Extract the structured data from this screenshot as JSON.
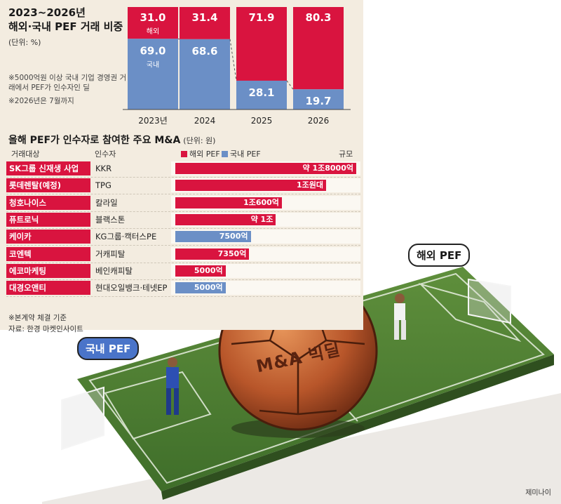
{
  "chart_data": [
    {
      "type": "bar",
      "stacked": true,
      "title": "2023~2026년\n해외·국내 PEF 거래 비중",
      "unit": "(단위: %)",
      "categories": [
        "2023년",
        "2024",
        "2025",
        "2026"
      ],
      "series": [
        {
          "name": "해외",
          "values": [
            31.0,
            31.4,
            71.9,
            80.3
          ],
          "color": "#d9143f"
        },
        {
          "name": "국내",
          "values": [
            69.0,
            68.6,
            28.1,
            19.7
          ],
          "color": "#6b8fc6"
        }
      ],
      "value_labels": {
        "해외": [
          "31.0",
          "31.4",
          "71.9",
          "80.3"
        ],
        "국내": [
          "69.0",
          "68.6",
          "28.1",
          "19.7"
        ]
      },
      "inline_labels": {
        "해외": "해외",
        "국내": "국내"
      },
      "ylim": [
        0,
        100
      ],
      "notes": [
        "※5000억원 이상 국내 기업 경영권 거래에서 PEF가 인수자인 딜",
        "※2026년은 7월까지"
      ]
    },
    {
      "type": "bar",
      "orientation": "horizontal",
      "title": "올해 PEF가 인수자로 참여한 주요 M&A",
      "unit": "(단위: 원)",
      "columns": [
        "거래대상",
        "인수자",
        "규모"
      ],
      "legend": [
        {
          "name": "해외 PEF",
          "color": "#d9143f"
        },
        {
          "name": "국내 PEF",
          "color": "#6b8fc6"
        }
      ],
      "rows": [
        {
          "target": "SK그룹 신재생 사업",
          "buyer": "KKR",
          "label": "약 1조8000억",
          "value_won_100m": 18000,
          "type": "해외"
        },
        {
          "target": "롯데렌탈(예정)",
          "buyer": "TPG",
          "label": "1조원대",
          "value_won_100m": 15000,
          "type": "해외"
        },
        {
          "target": "청호나이스",
          "buyer": "칼라일",
          "label": "1조600억",
          "value_won_100m": 10600,
          "type": "해외"
        },
        {
          "target": "퓨트로닉",
          "buyer": "블랙스톤",
          "label": "약 1조",
          "value_won_100m": 10000,
          "type": "해외"
        },
        {
          "target": "케이카",
          "buyer": "KG그룹·캑터스PE",
          "label": "7500억",
          "value_won_100m": 7500,
          "type": "국내"
        },
        {
          "target": "코엔텍",
          "buyer": "거캐피탈",
          "label": "7350억",
          "value_won_100m": 7350,
          "type": "해외"
        },
        {
          "target": "에코마케팅",
          "buyer": "베인캐피탈",
          "label": "5000억",
          "value_won_100m": 5000,
          "type": "해외"
        },
        {
          "target": "대경오앤티",
          "buyer": "현대오일뱅크·테넷EP",
          "label": "5000억",
          "value_won_100m": 5000,
          "type": "국내"
        }
      ],
      "footnotes": [
        "※본계약 체결 기준",
        "자료: 한경 마켓인사이트"
      ]
    }
  ],
  "illustration": {
    "ball_text": "M&A 빅딜",
    "bubble_foreign": "해외 PEF",
    "bubble_domestic": "국내 PEF",
    "credit": "제미나이"
  },
  "colors": {
    "foreign": "#d9143f",
    "domestic": "#6b8fc6",
    "panel": "#f3ece0",
    "target_cell": "#d9143f"
  }
}
